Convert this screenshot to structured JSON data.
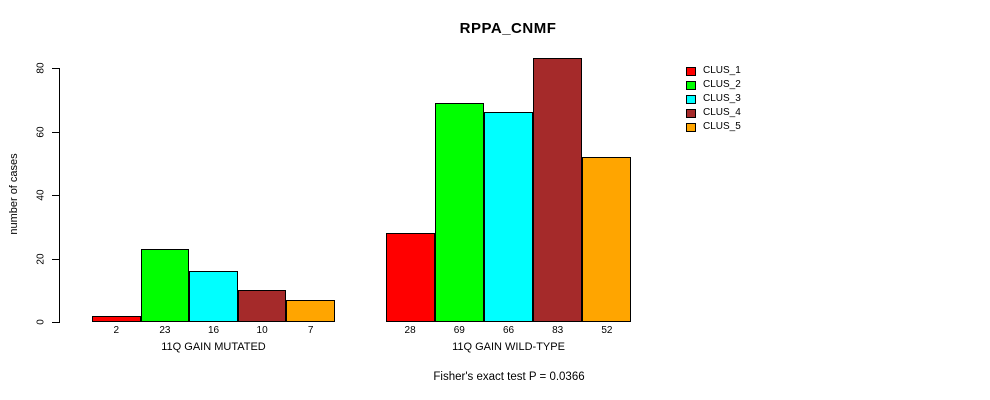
{
  "chart_data": {
    "type": "bar",
    "title": "RPPA_CNMF",
    "ylabel": "number of cases",
    "xlabel": "",
    "subtitle": "Fisher's exact test P = 0.0366",
    "categories": [
      "11Q GAIN MUTATED",
      "11Q GAIN WILD-TYPE"
    ],
    "series": [
      {
        "name": "CLUS_1",
        "color": "#ff0000",
        "values": [
          2,
          28
        ]
      },
      {
        "name": "CLUS_2",
        "color": "#00ff00",
        "values": [
          23,
          69
        ]
      },
      {
        "name": "CLUS_3",
        "color": "#00ffff",
        "values": [
          16,
          66
        ]
      },
      {
        "name": "CLUS_4",
        "color": "#a52a2a",
        "values": [
          10,
          83
        ]
      },
      {
        "name": "CLUS_5",
        "color": "#ffa500",
        "values": [
          7,
          52
        ]
      }
    ],
    "value_labels_shown": true,
    "yticks": [
      0,
      20,
      40,
      60,
      80
    ],
    "ylim": [
      0,
      83
    ],
    "grid": false,
    "legend_position": "right",
    "axis_color": "#000000",
    "background_color": "#ffffff"
  }
}
